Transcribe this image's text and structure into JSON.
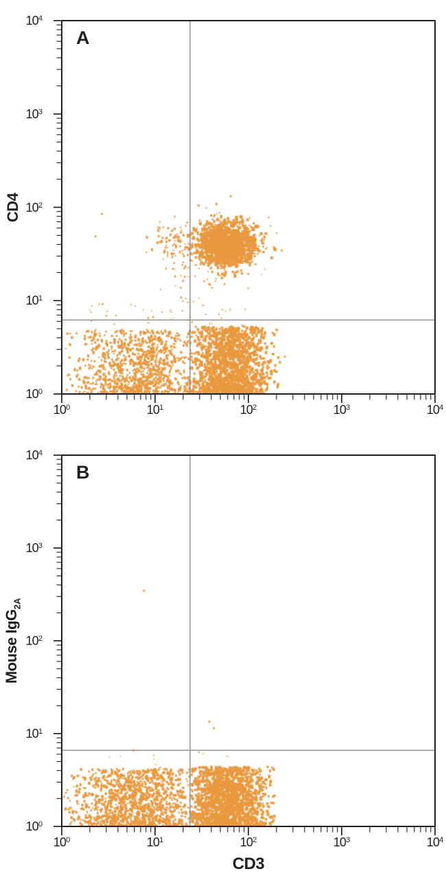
{
  "figure": {
    "background": "#ffffff",
    "point_color": "#E9993F",
    "axis_color": "#231F20",
    "gate_color": "#8A8A8A",
    "tick_base": "10"
  },
  "chart_data": [
    {
      "panel": "A",
      "type": "scatter",
      "title": "A",
      "xlabel": "",
      "ylabel": "CD4",
      "ylabel_sub": "",
      "x_scale": "log",
      "y_scale": "log",
      "xlim": [
        1,
        10000
      ],
      "ylim": [
        1,
        10000
      ],
      "x_tick_exponents": [
        0,
        1,
        2,
        3,
        4
      ],
      "y_tick_exponents": [
        0,
        1,
        2,
        3,
        4
      ],
      "grid": false,
      "legend": "none",
      "gates": {
        "x": 23.7,
        "y": 6.2
      },
      "populations": [
        {
          "name": "cd3pos-cd4pos-core",
          "n": 1500,
          "x": {
            "dist": "gauss",
            "mu": 1.76,
            "sigma": 0.15,
            "min": 1.32,
            "max": 2.3
          },
          "y": {
            "dist": "gauss",
            "mu": 1.6,
            "sigma": 0.11,
            "min": 1.15,
            "max": 2.05
          },
          "size": [
            2.6,
            4.4
          ]
        },
        {
          "name": "cd3pos-cd4pos-halo",
          "n": 230,
          "x": {
            "dist": "gauss",
            "mu": 1.76,
            "sigma": 0.23,
            "min": 1.02,
            "max": 2.36
          },
          "y": {
            "dist": "gauss",
            "mu": 1.62,
            "sigma": 0.17,
            "min": 1.0,
            "max": 2.15
          },
          "size": [
            1.8,
            3.0
          ]
        },
        {
          "name": "cd3dim-cd4pos",
          "n": 80,
          "x": {
            "dist": "gauss",
            "mu": 1.21,
            "sigma": 0.12,
            "min": 0.9,
            "max": 1.45
          },
          "y": {
            "dist": "gauss",
            "mu": 1.62,
            "sigma": 0.11,
            "min": 1.3,
            "max": 1.95
          },
          "size": [
            1.8,
            3.2
          ]
        },
        {
          "name": "bridge-sparse",
          "n": 50,
          "x": {
            "dist": "gauss",
            "mu": 1.42,
            "sigma": 0.2,
            "min": 0.8,
            "max": 1.9
          },
          "y": {
            "dist": "gauss",
            "mu": 1.36,
            "sigma": 0.22,
            "min": 0.95,
            "max": 1.8
          },
          "size": [
            1.6,
            2.6
          ]
        },
        {
          "name": "neg-left",
          "n": 1000,
          "x": {
            "dist": "gauss",
            "mu": 0.82,
            "sigma": 0.34,
            "min": 0.04,
            "max": 1.385
          },
          "y": {
            "dist": "pow",
            "min": 0,
            "max": 0.68,
            "k": 1.35
          },
          "size": [
            2.2,
            3.6
          ]
        },
        {
          "name": "neg-right",
          "n": 1450,
          "x": {
            "dist": "gauss",
            "mu": 1.8,
            "sigma": 0.2,
            "min": 1.385,
            "max": 2.34
          },
          "y": {
            "dist": "pow",
            "min": 0,
            "max": 0.72,
            "k": 1.3
          },
          "size": [
            2.6,
            4.3
          ]
        },
        {
          "name": "above-band-sparse",
          "n": 42,
          "x": {
            "dist": "uniform",
            "min": 0.15,
            "max": 2.05
          },
          "y": {
            "dist": "uniform",
            "min": 0.68,
            "max": 0.97
          },
          "size": [
            1.5,
            2.4
          ]
        }
      ],
      "outliers_log10": [
        [
          0.43,
          1.93
        ],
        [
          0.36,
          1.69
        ],
        [
          1.81,
          2.12
        ],
        [
          2.39,
          0.4
        ]
      ]
    },
    {
      "panel": "B",
      "type": "scatter",
      "title": "B",
      "xlabel": "CD3",
      "ylabel": "Mouse IgG",
      "ylabel_sub": "2A",
      "x_scale": "log",
      "y_scale": "log",
      "xlim": [
        1,
        10000
      ],
      "ylim": [
        1,
        10000
      ],
      "x_tick_exponents": [
        0,
        1,
        2,
        3,
        4
      ],
      "y_tick_exponents": [
        0,
        1,
        2,
        3,
        4
      ],
      "grid": false,
      "legend": "none",
      "gates": {
        "x": 23.7,
        "y": 6.6
      },
      "populations": [
        {
          "name": "neg-left",
          "n": 1150,
          "x": {
            "dist": "gauss",
            "mu": 0.8,
            "sigma": 0.36,
            "min": 0.02,
            "max": 1.39
          },
          "y": {
            "dist": "pow",
            "min": 0,
            "max": 0.62,
            "k": 1.3
          },
          "size": [
            2.2,
            3.8
          ]
        },
        {
          "name": "neg-right",
          "n": 1550,
          "x": {
            "dist": "gauss",
            "mu": 1.76,
            "sigma": 0.21,
            "min": 1.39,
            "max": 2.28
          },
          "y": {
            "dist": "pow",
            "min": 0,
            "max": 0.64,
            "k": 1.25
          },
          "size": [
            2.6,
            4.3
          ]
        },
        {
          "name": "above-band-sparse",
          "n": 10,
          "x": {
            "dist": "uniform",
            "min": 0.2,
            "max": 2.0
          },
          "y": {
            "dist": "uniform",
            "min": 0.62,
            "max": 0.8
          },
          "size": [
            1.5,
            2.2
          ]
        }
      ],
      "outliers_log10": [
        [
          0.88,
          2.54
        ],
        [
          1.58,
          1.13
        ],
        [
          1.63,
          1.06
        ],
        [
          0.77,
          0.82
        ]
      ]
    }
  ]
}
